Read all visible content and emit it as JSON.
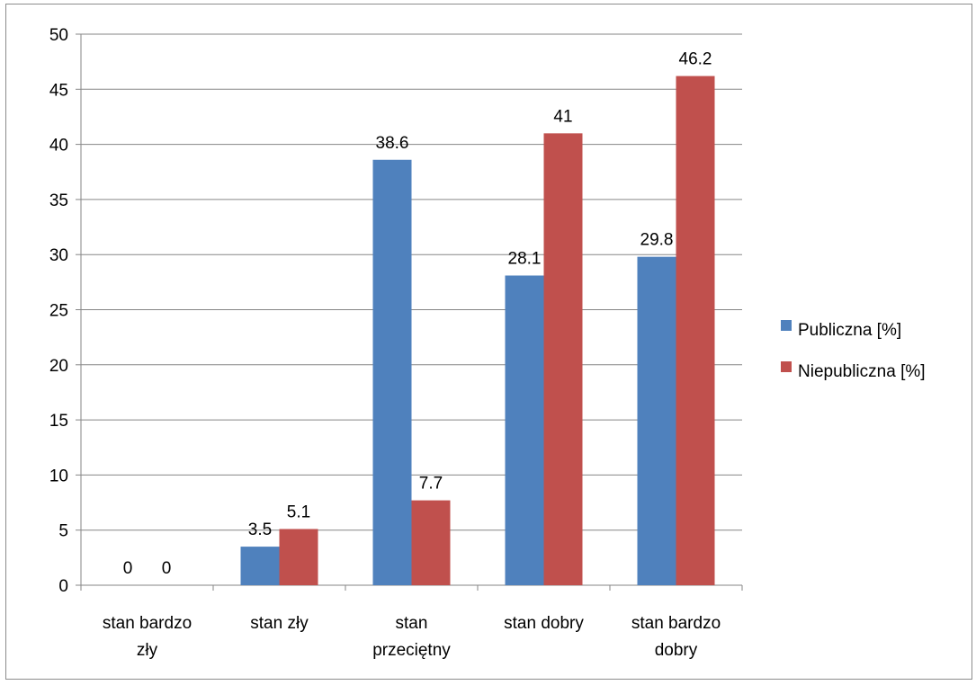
{
  "chart_data": {
    "type": "bar",
    "categories": [
      [
        "stan bardzo",
        "zły"
      ],
      [
        "stan zły"
      ],
      [
        "stan",
        "przeciętny"
      ],
      [
        "stan dobry"
      ],
      [
        "stan bardzo",
        "dobry"
      ]
    ],
    "series": [
      {
        "name": "Publiczna [%]",
        "color": "#4f81bd",
        "values": [
          0,
          3.5,
          38.6,
          28.1,
          29.8
        ]
      },
      {
        "name": "Niepubliczna [%]",
        "color": "#c0504d",
        "values": [
          0,
          5.1,
          7.7,
          41,
          46.2
        ]
      }
    ],
    "data_labels": [
      [
        "0",
        "3.5",
        "38.6",
        "28.1",
        "29.8"
      ],
      [
        "0",
        "5.1",
        "7.7",
        "41",
        "46.2"
      ]
    ],
    "ylim": [
      0,
      50
    ],
    "y_ticks": [
      "0",
      "5",
      "10",
      "15",
      "20",
      "25",
      "30",
      "35",
      "40",
      "45",
      "50"
    ],
    "grid": true,
    "legend_position": "right",
    "title": "",
    "xlabel": "",
    "ylabel": ""
  }
}
